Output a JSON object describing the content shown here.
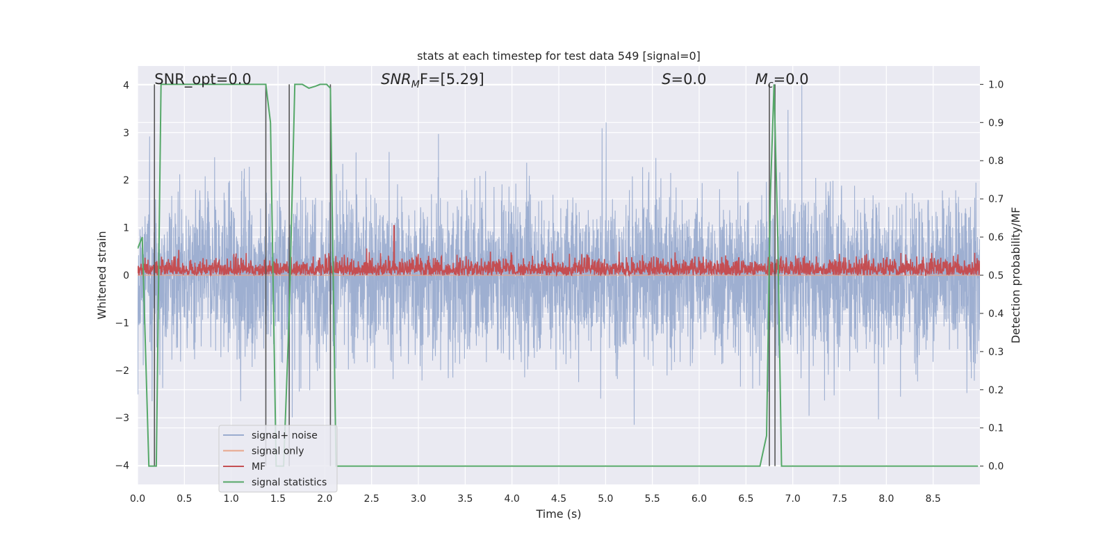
{
  "chart_data": {
    "type": "line",
    "title": "stats at each timestep for test data 549 [signal=0]",
    "xlabel": "Time (s)",
    "ylabel_left": "Whitened strain",
    "ylabel_right": "Detection probability/MF",
    "xlim": [
      0.0,
      9.0
    ],
    "ylim_left": [
      -4.4,
      4.4
    ],
    "ylim_right": [
      -0.048,
      1.048
    ],
    "x_ticks": [
      0.0,
      0.5,
      1.0,
      1.5,
      2.0,
      2.5,
      3.0,
      3.5,
      4.0,
      4.5,
      5.0,
      5.5,
      6.0,
      6.5,
      7.0,
      7.5,
      8.0,
      8.5
    ],
    "x_tick_labels": [
      "0.0",
      "0.5",
      "1.0",
      "1.5",
      "2.0",
      "2.5",
      "3.0",
      "3.5",
      "4.0",
      "4.5",
      "5.0",
      "5.5",
      "6.0",
      "6.5",
      "7.0",
      "7.5",
      "8.0",
      "8.5"
    ],
    "y_ticks_left": [
      -4,
      -3,
      -2,
      -1,
      0,
      1,
      2,
      3,
      4
    ],
    "y_tick_labels_left": [
      "−4",
      "−3",
      "−2",
      "−1",
      "0",
      "1",
      "2",
      "3",
      "4"
    ],
    "y_ticks_right": [
      0.0,
      0.1,
      0.2,
      0.3,
      0.4,
      0.5,
      0.6,
      0.7,
      0.8,
      0.9,
      1.0
    ],
    "y_tick_labels_right": [
      "0.0",
      "0.1",
      "0.2",
      "0.3",
      "0.4",
      "0.5",
      "0.6",
      "0.7",
      "0.8",
      "0.9",
      "1.0"
    ],
    "grid": true,
    "legend_placement": "lower-left",
    "colors": {
      "background": "#eaeaf2",
      "grid": "#ffffff",
      "noise": "#9aaccf",
      "signal_only": "#e8a58a",
      "mf": "#c44e52",
      "stat": "#55a868",
      "vline": "#555555"
    },
    "annotations": [
      {
        "text": "SNR_opt=0.0",
        "x": 0.18
      },
      {
        "text_parts": [
          "SNR",
          "M",
          "F=[5.29]"
        ],
        "x": 2.6
      },
      {
        "text_parts": [
          "S",
          "=0.0"
        ],
        "x": 5.6
      },
      {
        "text_parts": [
          "M",
          "c",
          "=0.0"
        ],
        "x": 6.6
      }
    ],
    "series": [
      {
        "name": "signal+ noise",
        "kind": "noise",
        "axis": "left",
        "envelope_typical": 2.0,
        "envelope_max": 4.0
      },
      {
        "name": "signal only",
        "kind": "flat",
        "axis": "left",
        "values": [
          0.0
        ]
      },
      {
        "name": "MF",
        "kind": "mf",
        "axis": "right",
        "baseline": 0.5,
        "range": [
          0.5,
          0.58
        ],
        "peak": {
          "x": 2.74,
          "y": 0.63
        }
      },
      {
        "name": "signal statistics",
        "kind": "line",
        "axis": "right",
        "x": [
          0.0,
          0.05,
          0.12,
          0.18,
          0.2,
          0.25,
          0.28,
          1.37,
          1.42,
          1.48,
          1.5,
          1.56,
          1.62,
          1.68,
          1.72,
          1.76,
          1.83,
          1.9,
          1.95,
          2.02,
          2.06,
          2.12,
          2.18,
          2.22,
          6.65,
          6.72,
          6.76,
          6.8,
          6.84,
          6.88,
          8.98
        ],
        "y": [
          0.57,
          0.6,
          0.0,
          0.0,
          0.0,
          1.0,
          1.0,
          1.0,
          0.9,
          0.0,
          0.0,
          0.0,
          0.4,
          1.0,
          1.0,
          1.0,
          0.99,
          0.995,
          1.0,
          1.0,
          0.99,
          0.0,
          0.0,
          0.0,
          0.0,
          0.08,
          0.7,
          1.0,
          0.6,
          0.0,
          0.0
        ]
      }
    ],
    "vertical_lines": [
      {
        "x": 0.18,
        "y_range": [
          0.0,
          1.0
        ]
      },
      {
        "x": 1.37,
        "y_range": [
          0.0,
          1.0
        ]
      },
      {
        "x": 1.62,
        "y_range": [
          0.0,
          1.0
        ]
      },
      {
        "x": 2.06,
        "y_range": [
          0.0,
          1.0
        ]
      },
      {
        "x": 6.75,
        "y_range": [
          0.0,
          1.0
        ]
      },
      {
        "x": 6.81,
        "y_range": [
          0.0,
          1.0
        ]
      }
    ]
  }
}
